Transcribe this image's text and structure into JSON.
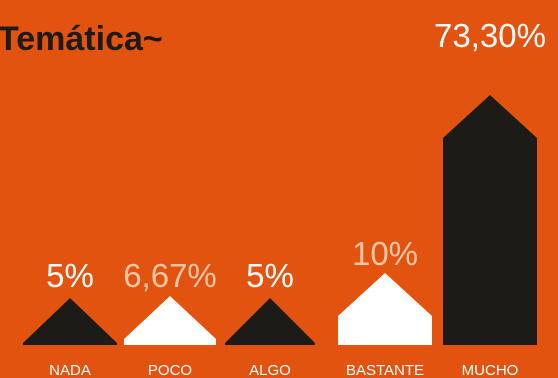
{
  "chart_data": {
    "type": "bar",
    "title": "Temática~",
    "categories": [
      "NADA",
      "POCO",
      "ALGO",
      "BASTANTE",
      "MUCHO"
    ],
    "values": [
      5,
      6.67,
      5,
      10,
      73.3
    ],
    "value_labels": [
      "5%",
      "6,67%",
      "5%",
      "10%",
      "73,30%"
    ],
    "unit": "%",
    "ylim": [
      0,
      80
    ],
    "grid": false,
    "legend": "none",
    "colors": {
      "background": "#E2530F",
      "bars": [
        "#1C1B17",
        "#FFFFFF",
        "#1C1B17",
        "#FFFFFF",
        "#1C1B17"
      ],
      "value_labels": [
        "#FFFFFF",
        "#F3C7A6",
        "#FFFFFF",
        "#F3C7A6",
        "#FFFFFF"
      ],
      "title": "#1C1B17",
      "category_labels": "#FFFFFF"
    }
  }
}
